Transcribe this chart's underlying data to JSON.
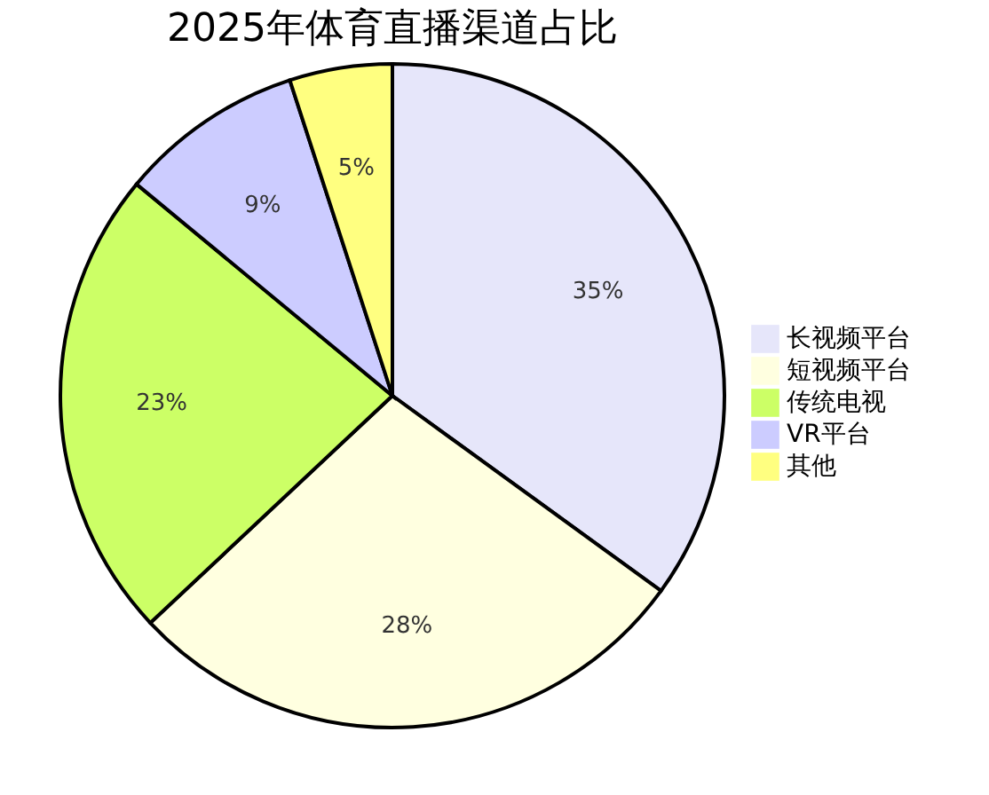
{
  "chart_data": {
    "type": "pie",
    "title": "2025年体育直播渠道占比",
    "categories": [
      "长视频平台",
      "短视频平台",
      "传统电视",
      "VR平台",
      "其他"
    ],
    "values": [
      35,
      28,
      23,
      9,
      5
    ],
    "colors": [
      "#e6e6fa",
      "#ffffe0",
      "#ccff66",
      "#ccccff",
      "#ffff80"
    ],
    "value_labels": [
      "35%",
      "28%",
      "23%",
      "9%",
      "5%"
    ],
    "legend": "right"
  }
}
